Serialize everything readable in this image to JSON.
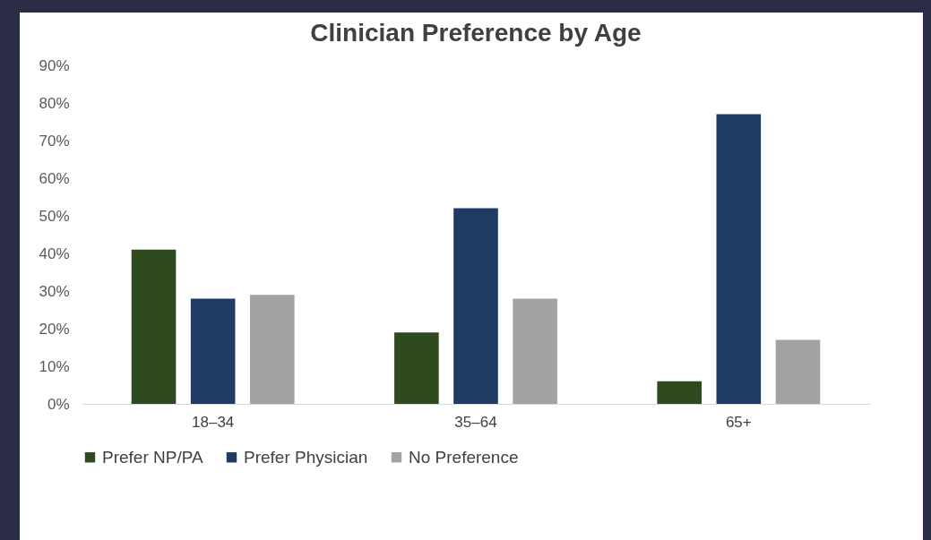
{
  "chart_data": {
    "type": "bar",
    "title": "Clinician Preference by Age",
    "categories": [
      "18–34",
      "35–64",
      "65+"
    ],
    "series": [
      {
        "name": "Prefer NP/PA",
        "color": "#2e4a1e",
        "values": [
          41,
          19,
          6
        ]
      },
      {
        "name": "Prefer Physician",
        "color": "#1f3a63",
        "values": [
          28,
          52,
          77
        ]
      },
      {
        "name": "No Preference",
        "color": "#a3a3a3",
        "values": [
          29,
          28,
          17
        ]
      }
    ],
    "ylim": [
      0,
      90
    ],
    "yticks": [
      {
        "value": 0,
        "label": "0%"
      },
      {
        "value": 10,
        "label": "10%"
      },
      {
        "value": 20,
        "label": "20%"
      },
      {
        "value": 30,
        "label": "30%"
      },
      {
        "value": 40,
        "label": "40%"
      },
      {
        "value": 50,
        "label": "50%"
      },
      {
        "value": 60,
        "label": "60%"
      },
      {
        "value": 70,
        "label": "70%"
      },
      {
        "value": 80,
        "label": "80%"
      },
      {
        "value": 90,
        "label": "90%"
      }
    ],
    "legend": "bottom"
  }
}
